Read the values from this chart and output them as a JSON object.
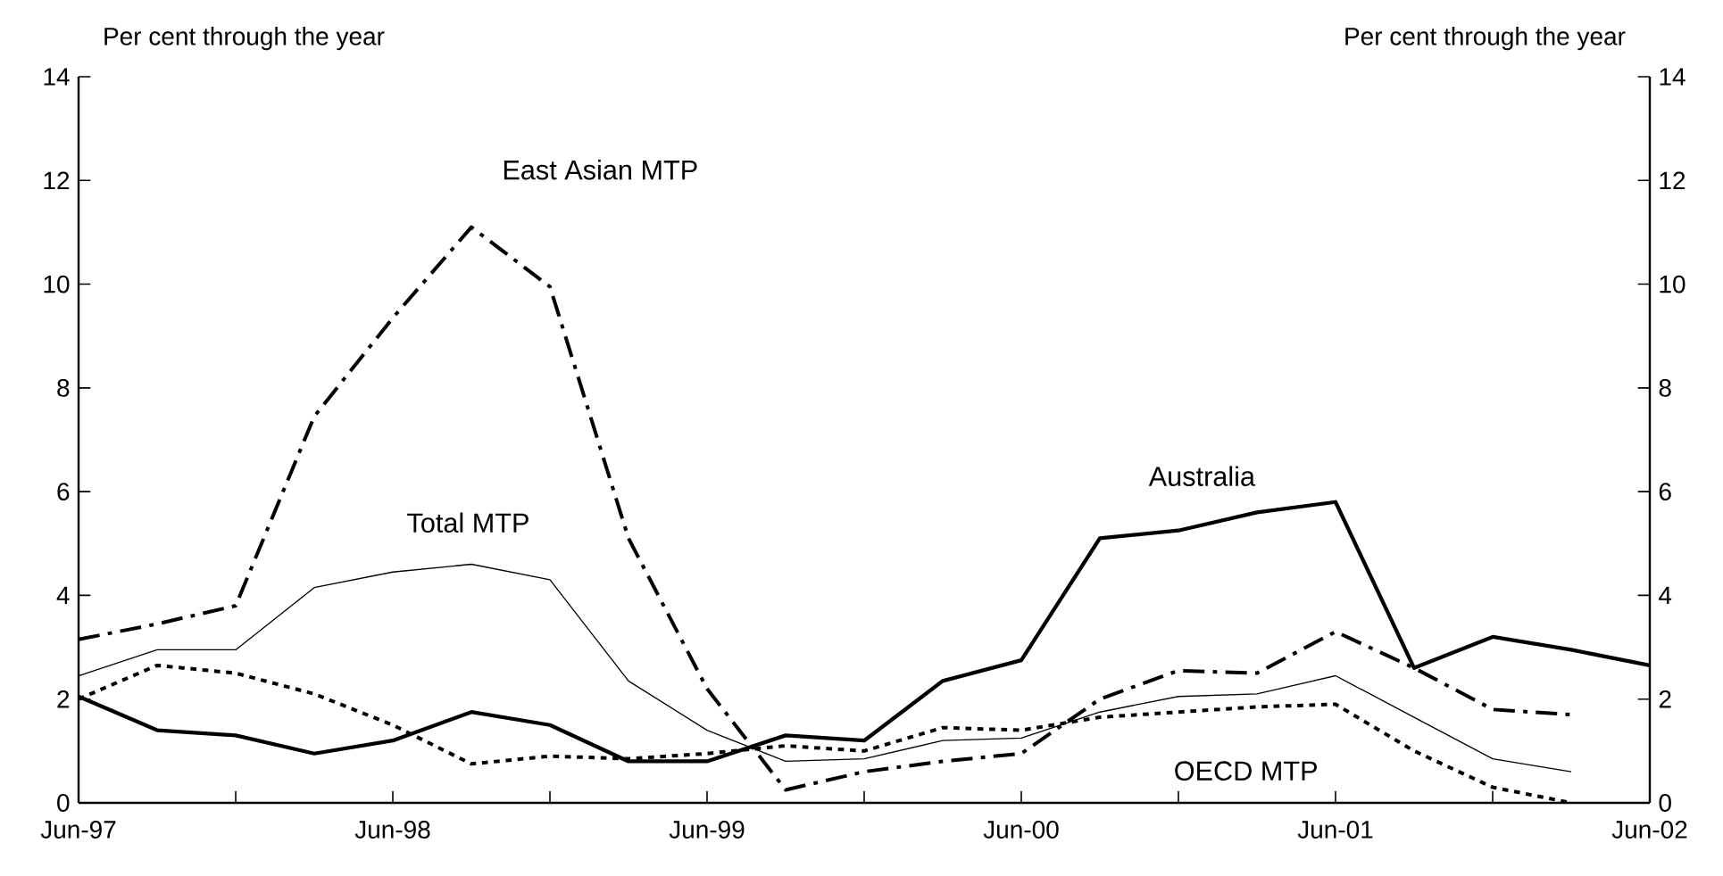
{
  "chart_data": {
    "type": "line",
    "ylabel": "Per cent through the year",
    "y2label": "Per cent through the year",
    "x": [
      "1997-06",
      "1997-09",
      "1997-12",
      "1998-03",
      "1998-06",
      "1998-09",
      "1998-12",
      "1999-03",
      "1999-06",
      "1999-09",
      "1999-12",
      "2000-03",
      "2000-06",
      "2000-09",
      "2000-12",
      "2001-03",
      "2001-06",
      "2001-09",
      "2001-12",
      "2002-03",
      "2002-06"
    ],
    "series": [
      {
        "name": "Australia",
        "color": "#000000",
        "line_style": "solid",
        "values": [
          2.05,
          1.4,
          1.3,
          0.95,
          1.2,
          1.75,
          1.5,
          0.8,
          0.8,
          1.3,
          1.2,
          2.35,
          2.75,
          5.1,
          5.25,
          5.6,
          5.8,
          2.6,
          3.2,
          2.95,
          2.65
        ]
      },
      {
        "name": "East Asian MTP",
        "color": "#000000",
        "line_style": "dashdot",
        "values": [
          3.15,
          3.45,
          3.8,
          7.45,
          9.35,
          11.1,
          9.95,
          5.1,
          2.2,
          0.25,
          0.6,
          0.8,
          0.95,
          2.0,
          2.55,
          2.5,
          3.3,
          2.6,
          1.8,
          1.7,
          null
        ]
      },
      {
        "name": "Total MTP",
        "color": "#000000",
        "line_style": "solid",
        "values": [
          2.45,
          2.95,
          2.95,
          4.15,
          4.45,
          4.6,
          4.3,
          2.35,
          1.4,
          0.8,
          0.85,
          1.2,
          1.25,
          1.75,
          2.05,
          2.1,
          2.45,
          1.65,
          0.85,
          0.6,
          null
        ]
      },
      {
        "name": "OECD MTP",
        "color": "#000000",
        "line_style": "dotted",
        "values": [
          2.0,
          2.65,
          2.5,
          2.1,
          1.5,
          0.75,
          0.9,
          0.85,
          0.95,
          1.1,
          1.0,
          1.45,
          1.4,
          1.65,
          1.75,
          1.85,
          1.9,
          1.0,
          0.3,
          0.0,
          null
        ]
      }
    ],
    "xlim": [
      "1997-06",
      "2002-06"
    ],
    "xticks": [
      {
        "value": "1997-06",
        "label": "Jun-97"
      },
      {
        "value": "1997-12",
        "label": null
      },
      {
        "value": "1998-06",
        "label": "Jun-98"
      },
      {
        "value": "1998-12",
        "label": null
      },
      {
        "value": "1999-06",
        "label": "Jun-99"
      },
      {
        "value": "1999-12",
        "label": null
      },
      {
        "value": "2000-06",
        "label": "Jun-00"
      },
      {
        "value": "2000-12",
        "label": null
      },
      {
        "value": "2001-06",
        "label": "Jun-01"
      },
      {
        "value": "2001-12",
        "label": null
      },
      {
        "value": "2002-06",
        "label": "Jun-02"
      }
    ],
    "ylim": [
      0,
      14
    ],
    "yticks": [
      0,
      2,
      4,
      6,
      8,
      10,
      12,
      14
    ],
    "y2lim": [
      0,
      14
    ],
    "y2ticks": [
      0,
      2,
      4,
      6,
      8,
      10,
      12,
      14
    ],
    "grid": false,
    "legend": false,
    "marker": "none"
  }
}
